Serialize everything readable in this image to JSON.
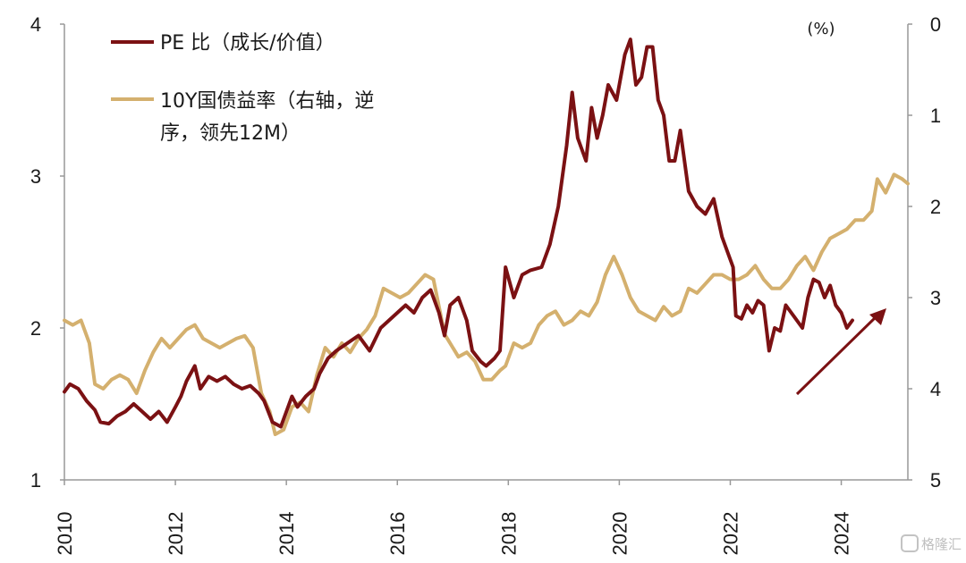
{
  "chart_data": {
    "type": "line",
    "y_left": {
      "ticks": [
        1,
        2,
        3,
        4
      ],
      "range": [
        1,
        4
      ]
    },
    "y_right": {
      "ticks": [
        0,
        1,
        2,
        3,
        4,
        5
      ],
      "range": [
        0,
        5
      ],
      "inverted": true,
      "unit": "(%)"
    },
    "x_ticks": [
      "2010",
      "2012",
      "2014",
      "2016",
      "2018",
      "2020",
      "2022",
      "2024"
    ],
    "x_range": [
      2010.0,
      2025.2
    ],
    "legend": {
      "position": "top-left"
    },
    "series": [
      {
        "name": "PE 比（成长/价值）",
        "axis": "left",
        "color": "#7b1113",
        "points": [
          [
            2010.0,
            1.58
          ],
          [
            2010.1,
            1.63
          ],
          [
            2010.25,
            1.6
          ],
          [
            2010.4,
            1.52
          ],
          [
            2010.55,
            1.46
          ],
          [
            2010.65,
            1.38
          ],
          [
            2010.8,
            1.37
          ],
          [
            2010.95,
            1.42
          ],
          [
            2011.1,
            1.45
          ],
          [
            2011.25,
            1.5
          ],
          [
            2011.4,
            1.45
          ],
          [
            2011.55,
            1.4
          ],
          [
            2011.7,
            1.45
          ],
          [
            2011.85,
            1.38
          ],
          [
            2012.0,
            1.48
          ],
          [
            2012.1,
            1.55
          ],
          [
            2012.2,
            1.65
          ],
          [
            2012.35,
            1.75
          ],
          [
            2012.45,
            1.6
          ],
          [
            2012.6,
            1.68
          ],
          [
            2012.75,
            1.65
          ],
          [
            2012.9,
            1.68
          ],
          [
            2013.05,
            1.63
          ],
          [
            2013.2,
            1.6
          ],
          [
            2013.35,
            1.62
          ],
          [
            2013.5,
            1.57
          ],
          [
            2013.6,
            1.52
          ],
          [
            2013.75,
            1.38
          ],
          [
            2013.9,
            1.35
          ],
          [
            2014.0,
            1.45
          ],
          [
            2014.1,
            1.55
          ],
          [
            2014.2,
            1.48
          ],
          [
            2014.35,
            1.55
          ],
          [
            2014.5,
            1.6
          ],
          [
            2014.6,
            1.7
          ],
          [
            2014.75,
            1.8
          ],
          [
            2014.9,
            1.85
          ],
          [
            2015.1,
            1.9
          ],
          [
            2015.3,
            1.95
          ],
          [
            2015.5,
            1.85
          ],
          [
            2015.7,
            2.0
          ],
          [
            2015.85,
            2.05
          ],
          [
            2016.0,
            2.1
          ],
          [
            2016.15,
            2.15
          ],
          [
            2016.3,
            2.1
          ],
          [
            2016.45,
            2.2
          ],
          [
            2016.6,
            2.25
          ],
          [
            2016.75,
            2.1
          ],
          [
            2016.85,
            1.95
          ],
          [
            2016.95,
            2.15
          ],
          [
            2017.1,
            2.2
          ],
          [
            2017.25,
            2.05
          ],
          [
            2017.35,
            1.85
          ],
          [
            2017.5,
            1.78
          ],
          [
            2017.6,
            1.75
          ],
          [
            2017.75,
            1.8
          ],
          [
            2017.85,
            1.85
          ],
          [
            2017.95,
            2.4
          ],
          [
            2018.1,
            2.2
          ],
          [
            2018.25,
            2.35
          ],
          [
            2018.4,
            2.38
          ],
          [
            2018.6,
            2.4
          ],
          [
            2018.75,
            2.55
          ],
          [
            2018.9,
            2.8
          ],
          [
            2019.05,
            3.2
          ],
          [
            2019.15,
            3.55
          ],
          [
            2019.25,
            3.25
          ],
          [
            2019.4,
            3.1
          ],
          [
            2019.5,
            3.45
          ],
          [
            2019.6,
            3.25
          ],
          [
            2019.7,
            3.4
          ],
          [
            2019.8,
            3.6
          ],
          [
            2019.95,
            3.5
          ],
          [
            2020.1,
            3.8
          ],
          [
            2020.2,
            3.9
          ],
          [
            2020.3,
            3.6
          ],
          [
            2020.4,
            3.65
          ],
          [
            2020.5,
            3.85
          ],
          [
            2020.6,
            3.85
          ],
          [
            2020.7,
            3.5
          ],
          [
            2020.8,
            3.4
          ],
          [
            2020.9,
            3.1
          ],
          [
            2021.0,
            3.1
          ],
          [
            2021.1,
            3.3
          ],
          [
            2021.25,
            2.9
          ],
          [
            2021.4,
            2.8
          ],
          [
            2021.55,
            2.75
          ],
          [
            2021.7,
            2.85
          ],
          [
            2021.85,
            2.6
          ],
          [
            2022.0,
            2.45
          ],
          [
            2022.05,
            2.4
          ],
          [
            2022.1,
            2.08
          ],
          [
            2022.2,
            2.06
          ],
          [
            2022.3,
            2.15
          ],
          [
            2022.4,
            2.1
          ],
          [
            2022.5,
            2.18
          ],
          [
            2022.6,
            2.15
          ],
          [
            2022.7,
            1.85
          ],
          [
            2022.8,
            2.0
          ],
          [
            2022.9,
            1.98
          ],
          [
            2023.0,
            2.15
          ],
          [
            2023.1,
            2.1
          ],
          [
            2023.2,
            2.05
          ],
          [
            2023.3,
            2.0
          ],
          [
            2023.4,
            2.2
          ],
          [
            2023.5,
            2.32
          ],
          [
            2023.6,
            2.3
          ],
          [
            2023.7,
            2.2
          ],
          [
            2023.8,
            2.28
          ],
          [
            2023.9,
            2.15
          ],
          [
            2024.0,
            2.1
          ],
          [
            2024.1,
            2.0
          ],
          [
            2024.2,
            2.05
          ]
        ]
      },
      {
        "name": "10Y国债益率（右轴，逆序，领先12M）",
        "axis": "right",
        "color": "#d4b06e",
        "points": [
          [
            2010.0,
            3.25
          ],
          [
            2010.15,
            3.3
          ],
          [
            2010.3,
            3.25
          ],
          [
            2010.45,
            3.5
          ],
          [
            2010.55,
            3.95
          ],
          [
            2010.7,
            4.0
          ],
          [
            2010.85,
            3.9
          ],
          [
            2011.0,
            3.85
          ],
          [
            2011.15,
            3.9
          ],
          [
            2011.3,
            4.05
          ],
          [
            2011.45,
            3.8
          ],
          [
            2011.6,
            3.6
          ],
          [
            2011.75,
            3.45
          ],
          [
            2011.9,
            3.55
          ],
          [
            2012.05,
            3.45
          ],
          [
            2012.2,
            3.35
          ],
          [
            2012.35,
            3.3
          ],
          [
            2012.5,
            3.45
          ],
          [
            2012.65,
            3.5
          ],
          [
            2012.8,
            3.55
          ],
          [
            2012.95,
            3.5
          ],
          [
            2013.1,
            3.45
          ],
          [
            2013.25,
            3.42
          ],
          [
            2013.4,
            3.55
          ],
          [
            2013.55,
            4.05
          ],
          [
            2013.7,
            4.25
          ],
          [
            2013.8,
            4.5
          ],
          [
            2013.95,
            4.45
          ],
          [
            2014.1,
            4.2
          ],
          [
            2014.25,
            4.15
          ],
          [
            2014.4,
            4.25
          ],
          [
            2014.55,
            3.85
          ],
          [
            2014.7,
            3.55
          ],
          [
            2014.85,
            3.65
          ],
          [
            2015.0,
            3.5
          ],
          [
            2015.15,
            3.6
          ],
          [
            2015.3,
            3.45
          ],
          [
            2015.45,
            3.35
          ],
          [
            2015.6,
            3.2
          ],
          [
            2015.75,
            2.9
          ],
          [
            2015.9,
            2.95
          ],
          [
            2016.05,
            3.0
          ],
          [
            2016.2,
            2.95
          ],
          [
            2016.35,
            2.85
          ],
          [
            2016.5,
            2.75
          ],
          [
            2016.65,
            2.8
          ],
          [
            2016.75,
            3.1
          ],
          [
            2016.85,
            3.4
          ],
          [
            2016.95,
            3.5
          ],
          [
            2017.1,
            3.65
          ],
          [
            2017.25,
            3.6
          ],
          [
            2017.4,
            3.7
          ],
          [
            2017.55,
            3.9
          ],
          [
            2017.7,
            3.9
          ],
          [
            2017.85,
            3.8
          ],
          [
            2017.95,
            3.75
          ],
          [
            2018.1,
            3.5
          ],
          [
            2018.25,
            3.55
          ],
          [
            2018.4,
            3.5
          ],
          [
            2018.55,
            3.3
          ],
          [
            2018.7,
            3.2
          ],
          [
            2018.85,
            3.15
          ],
          [
            2019.0,
            3.3
          ],
          [
            2019.15,
            3.25
          ],
          [
            2019.3,
            3.15
          ],
          [
            2019.45,
            3.2
          ],
          [
            2019.6,
            3.05
          ],
          [
            2019.75,
            2.75
          ],
          [
            2019.9,
            2.55
          ],
          [
            2020.05,
            2.75
          ],
          [
            2020.2,
            3.0
          ],
          [
            2020.35,
            3.15
          ],
          [
            2020.5,
            3.2
          ],
          [
            2020.65,
            3.25
          ],
          [
            2020.8,
            3.1
          ],
          [
            2020.95,
            3.2
          ],
          [
            2021.1,
            3.15
          ],
          [
            2021.25,
            2.9
          ],
          [
            2021.4,
            2.95
          ],
          [
            2021.55,
            2.85
          ],
          [
            2021.7,
            2.75
          ],
          [
            2021.85,
            2.75
          ],
          [
            2022.0,
            2.8
          ],
          [
            2022.15,
            2.8
          ],
          [
            2022.3,
            2.75
          ],
          [
            2022.45,
            2.65
          ],
          [
            2022.6,
            2.8
          ],
          [
            2022.75,
            2.9
          ],
          [
            2022.9,
            2.9
          ],
          [
            2023.05,
            2.8
          ],
          [
            2023.2,
            2.65
          ],
          [
            2023.35,
            2.55
          ],
          [
            2023.5,
            2.7
          ],
          [
            2023.65,
            2.5
          ],
          [
            2023.8,
            2.35
          ],
          [
            2023.95,
            2.3
          ],
          [
            2024.1,
            2.25
          ],
          [
            2024.25,
            2.15
          ],
          [
            2024.4,
            2.15
          ],
          [
            2024.55,
            2.05
          ],
          [
            2024.65,
            1.7
          ],
          [
            2024.8,
            1.85
          ],
          [
            2024.95,
            1.65
          ],
          [
            2025.1,
            1.7
          ],
          [
            2025.2,
            1.75
          ]
        ]
      }
    ],
    "annotation": {
      "type": "arrow",
      "direction": "up-right",
      "color": "#7b1113"
    }
  },
  "watermark": {
    "text": "格隆汇"
  }
}
